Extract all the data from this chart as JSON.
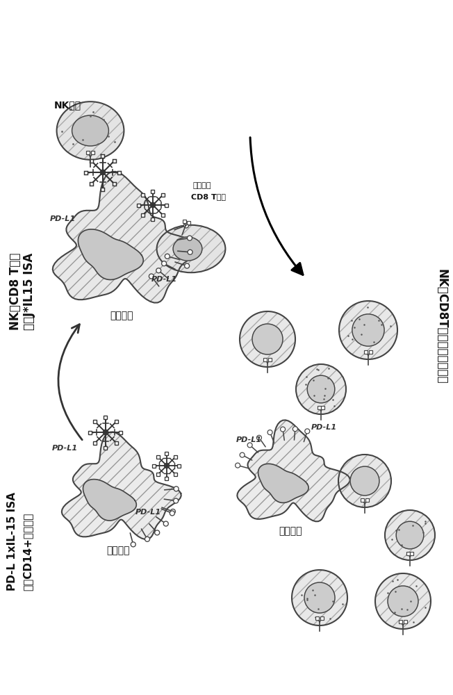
{
  "bg_color": "#ffffff",
  "cell_outline": "#444444",
  "labels": {
    "top_left_line1": "NK和CD8 T细胞",
    "top_left_line2": "结合J*IL15 ISA",
    "nk_cell": "NK细胞",
    "cd8_cell_line1": "细胞毒性",
    "cd8_cell_line2": "CD8 T细胞",
    "monocyte_top": "单核细胞",
    "right_title": "NK和CD8T细胞的活化和增殖",
    "bottom_left_line1": "PD-L 1xIL-15 ISA",
    "bottom_left_line2": "结合CD14+单核细胞",
    "monocyte_bottom": "单核细胞",
    "monocyte_right": "单核细胞",
    "pdl1": "PD-L1"
  },
  "font_size_large": 12,
  "font_size_medium": 10,
  "font_size_small": 8
}
